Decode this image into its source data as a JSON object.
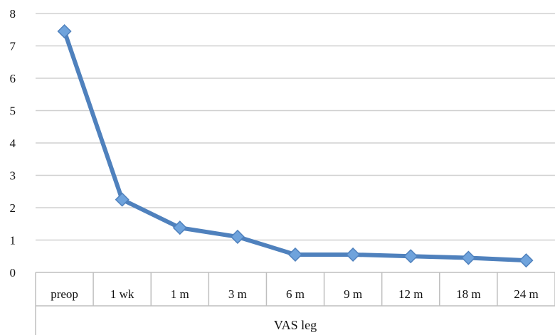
{
  "chart_data": {
    "type": "line",
    "title": "",
    "xlabel": "VAS leg",
    "ylabel": "",
    "categories": [
      "preop",
      "1 wk",
      "1 m",
      "3 m",
      "6 m",
      "9 m",
      "12 m",
      "18 m",
      "24 m"
    ],
    "series": [
      {
        "values": [
          7.45,
          2.25,
          1.38,
          1.1,
          0.55,
          0.55,
          0.5,
          0.45,
          0.37
        ]
      }
    ],
    "ylim": [
      0,
      8
    ],
    "yticks": [
      0,
      1,
      2,
      3,
      4,
      5,
      6,
      7,
      8
    ],
    "grid": true,
    "legend": "none",
    "colors": {
      "line": "#4f81bd",
      "marker": "#6fa3dc",
      "grid": "#d0d0d0",
      "axis": "#bfbfbf"
    }
  }
}
